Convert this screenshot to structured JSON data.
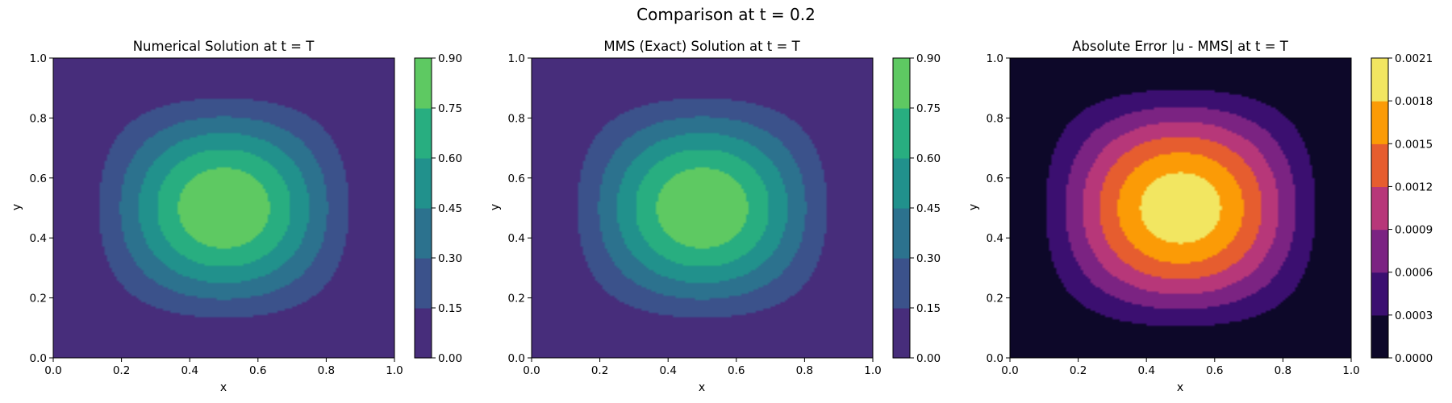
{
  "figure": {
    "suptitle": "Comparison at t = 0.2"
  },
  "colors": {
    "viridis_bands": [
      "#472d7b",
      "#3b528b",
      "#2c728e",
      "#21918c",
      "#28ae80",
      "#5ec962",
      "#c8e020"
    ],
    "inferno_bands": [
      "#0d0829",
      "#3b0f70",
      "#7b2382",
      "#b73779",
      "#e65d2f",
      "#fb9b06",
      "#f2e661"
    ]
  },
  "chart_data": [
    {
      "type": "heatmap",
      "subtype": "filled-contour",
      "title": "Numerical Solution at t = T",
      "xlabel": "x",
      "ylabel": "y",
      "xlim": [
        0.0,
        1.0
      ],
      "ylim": [
        0.0,
        1.0
      ],
      "xticks": [
        "0.0",
        "0.2",
        "0.4",
        "0.6",
        "0.8",
        "1.0"
      ],
      "yticks": [
        "0.0",
        "0.2",
        "0.4",
        "0.6",
        "0.8",
        "1.0"
      ],
      "colormap": "viridis",
      "levels": [
        0.0,
        0.15,
        0.3,
        0.45,
        0.6,
        0.75,
        0.9
      ],
      "level_labels": [
        "0.00",
        "0.15",
        "0.30",
        "0.45",
        "0.60",
        "0.75",
        "0.90"
      ],
      "field": {
        "peak": 0.9,
        "center": [
          0.5,
          0.5
        ],
        "exponent": 2
      }
    },
    {
      "type": "heatmap",
      "subtype": "filled-contour",
      "title": "MMS (Exact) Solution at t = T",
      "xlabel": "x",
      "ylabel": "y",
      "xlim": [
        0.0,
        1.0
      ],
      "ylim": [
        0.0,
        1.0
      ],
      "xticks": [
        "0.0",
        "0.2",
        "0.4",
        "0.6",
        "0.8",
        "1.0"
      ],
      "yticks": [
        "0.0",
        "0.2",
        "0.4",
        "0.6",
        "0.8",
        "1.0"
      ],
      "colormap": "viridis",
      "levels": [
        0.0,
        0.15,
        0.3,
        0.45,
        0.6,
        0.75,
        0.9
      ],
      "level_labels": [
        "0.00",
        "0.15",
        "0.30",
        "0.45",
        "0.60",
        "0.75",
        "0.90"
      ],
      "field": {
        "peak": 0.9,
        "center": [
          0.5,
          0.5
        ],
        "exponent": 2
      }
    },
    {
      "type": "heatmap",
      "subtype": "filled-contour",
      "title": "Absolute Error |u - MMS| at t = T",
      "xlabel": "x",
      "ylabel": "y",
      "xlim": [
        0.0,
        1.0
      ],
      "ylim": [
        0.0,
        1.0
      ],
      "xticks": [
        "0.0",
        "0.2",
        "0.4",
        "0.6",
        "0.8",
        "1.0"
      ],
      "yticks": [
        "0.0",
        "0.2",
        "0.4",
        "0.6",
        "0.8",
        "1.0"
      ],
      "colormap": "inferno",
      "levels": [
        0.0,
        0.0003,
        0.0006,
        0.0009,
        0.0012,
        0.0015,
        0.0018,
        0.0021
      ],
      "level_labels": [
        "0.0000",
        "0.0003",
        "0.0006",
        "0.0009",
        "0.0012",
        "0.0015",
        "0.0018",
        "0.0021"
      ],
      "field": {
        "peak": 0.00203,
        "center": [
          0.5,
          0.5
        ],
        "exponent": 1.7
      }
    }
  ]
}
